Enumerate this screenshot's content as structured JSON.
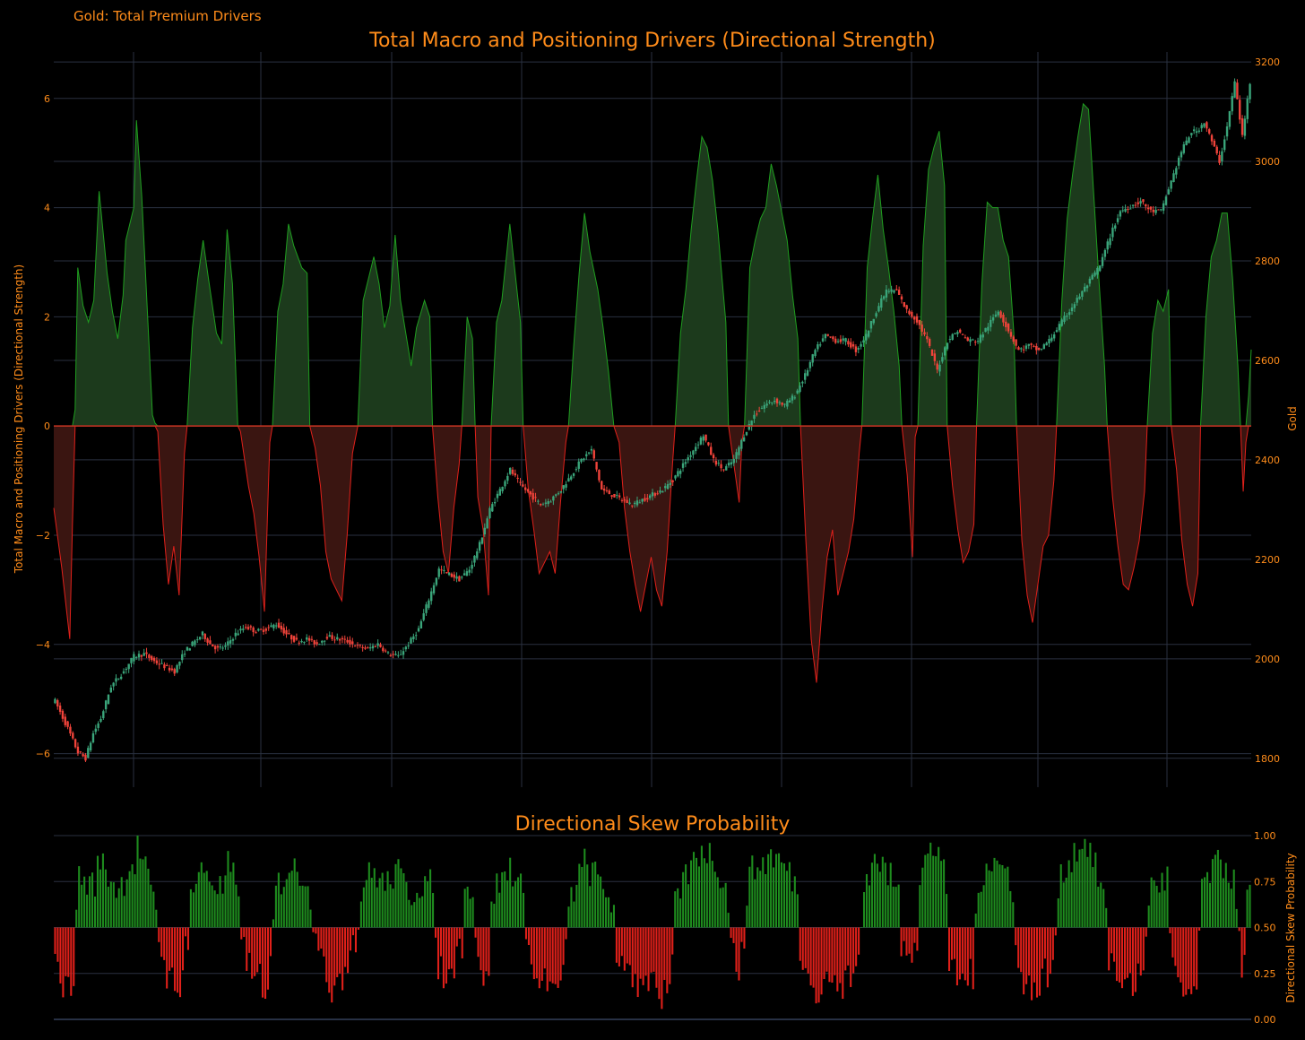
{
  "colors": {
    "accent": "#ff8c1a",
    "grid": "#2a3140",
    "bull_fill": "#1c3a1c",
    "bull_line": "#1f9e1f",
    "bear_fill": "#3a1511",
    "bear_line": "#e0201a",
    "candle_up": "#3aa57a",
    "candle_down": "#f0433a",
    "prob_up": "#1e8c1e",
    "prob_down": "#e0201a"
  },
  "header": {
    "label": "Gold: Total Premium Drivers"
  },
  "chart_data": [
    {
      "type": "area",
      "title": "Total Macro and Positioning Drivers (Directional Strength)",
      "ylabel": "Total Macro and Positioning Drivers (Directional Strength)",
      "y2label": "Gold",
      "ylim": [
        -6.45,
        6.85
      ],
      "y_ticks": [
        "6",
        "4",
        "2",
        "0",
        "−2",
        "−4",
        "−6"
      ],
      "y_tick_values": [
        6,
        4,
        2,
        0,
        -2,
        -4,
        -6
      ],
      "y2lim": [
        1760,
        3220
      ],
      "y2_ticks": [
        "3200",
        "3000",
        "2800",
        "2600",
        "2400",
        "2200",
        "2000",
        "1800"
      ],
      "y2_tick_values": [
        3200,
        3000,
        2800,
        2600,
        2400,
        2200,
        2000,
        1800
      ],
      "grid": true,
      "n_points": 450,
      "driver_anchors": [
        [
          0,
          -1.5
        ],
        [
          3,
          -2.6
        ],
        [
          6,
          -3.9
        ],
        [
          8,
          0.3
        ],
        [
          9,
          2.9
        ],
        [
          11,
          2.2
        ],
        [
          13,
          1.9
        ],
        [
          15,
          2.3
        ],
        [
          17,
          4.3
        ],
        [
          20,
          2.8
        ],
        [
          22,
          2.1
        ],
        [
          24,
          1.6
        ],
        [
          26,
          2.4
        ],
        [
          27,
          3.4
        ],
        [
          30,
          4.0
        ],
        [
          31,
          5.6
        ],
        [
          33,
          4.2
        ],
        [
          35,
          2.2
        ],
        [
          37,
          0.2
        ],
        [
          39,
          -0.1
        ],
        [
          41,
          -1.8
        ],
        [
          43,
          -2.9
        ],
        [
          45,
          -2.2
        ],
        [
          47,
          -3.1
        ],
        [
          49,
          -0.5
        ],
        [
          50,
          0.0
        ],
        [
          52,
          1.8
        ],
        [
          54,
          2.7
        ],
        [
          56,
          3.4
        ],
        [
          58,
          2.7
        ],
        [
          61,
          1.7
        ],
        [
          63,
          1.5
        ],
        [
          65,
          3.6
        ],
        [
          67,
          2.6
        ],
        [
          69,
          0.0
        ],
        [
          70,
          -0.1
        ],
        [
          73,
          -1.1
        ],
        [
          75,
          -1.6
        ],
        [
          77,
          -2.4
        ],
        [
          79,
          -3.4
        ],
        [
          81,
          -0.3
        ],
        [
          82,
          0.0
        ],
        [
          84,
          2.1
        ],
        [
          86,
          2.6
        ],
        [
          88,
          3.7
        ],
        [
          90,
          3.3
        ],
        [
          93,
          2.9
        ],
        [
          95,
          2.8
        ],
        [
          96,
          0.0
        ],
        [
          98,
          -0.4
        ],
        [
          100,
          -1.1
        ],
        [
          102,
          -2.3
        ],
        [
          104,
          -2.8
        ],
        [
          106,
          -3.0
        ],
        [
          108,
          -3.2
        ],
        [
          110,
          -2.0
        ],
        [
          112,
          -0.5
        ],
        [
          114,
          0.0
        ],
        [
          116,
          2.3
        ],
        [
          118,
          2.7
        ],
        [
          120,
          3.1
        ],
        [
          122,
          2.6
        ],
        [
          124,
          1.8
        ],
        [
          126,
          2.2
        ],
        [
          128,
          3.5
        ],
        [
          130,
          2.3
        ],
        [
          132,
          1.7
        ],
        [
          134,
          1.1
        ],
        [
          136,
          1.8
        ],
        [
          139,
          2.3
        ],
        [
          141,
          2.0
        ],
        [
          142,
          0.0
        ],
        [
          144,
          -1.3
        ],
        [
          146,
          -2.3
        ],
        [
          148,
          -2.7
        ],
        [
          150,
          -1.5
        ],
        [
          152,
          -0.7
        ],
        [
          153,
          0.0
        ],
        [
          155,
          2.0
        ],
        [
          157,
          1.6
        ],
        [
          158,
          0.0
        ],
        [
          159,
          -1.3
        ],
        [
          161,
          -1.9
        ],
        [
          163,
          -3.1
        ],
        [
          164,
          0.0
        ],
        [
          166,
          1.9
        ],
        [
          168,
          2.3
        ],
        [
          171,
          3.7
        ],
        [
          173,
          2.8
        ],
        [
          175,
          1.9
        ],
        [
          176,
          0.0
        ],
        [
          178,
          -1.2
        ],
        [
          180,
          -1.9
        ],
        [
          182,
          -2.7
        ],
        [
          184,
          -2.5
        ],
        [
          186,
          -2.3
        ],
        [
          188,
          -2.7
        ],
        [
          190,
          -1.4
        ],
        [
          192,
          -0.3
        ],
        [
          193,
          0.0
        ],
        [
          195,
          1.5
        ],
        [
          197,
          2.8
        ],
        [
          199,
          3.9
        ],
        [
          201,
          3.2
        ],
        [
          204,
          2.5
        ],
        [
          206,
          1.8
        ],
        [
          208,
          1.0
        ],
        [
          210,
          0.0
        ],
        [
          212,
          -0.3
        ],
        [
          214,
          -1.5
        ],
        [
          216,
          -2.3
        ],
        [
          218,
          -2.9
        ],
        [
          220,
          -3.4
        ],
        [
          222,
          -2.9
        ],
        [
          224,
          -2.4
        ],
        [
          226,
          -3.0
        ],
        [
          228,
          -3.3
        ],
        [
          230,
          -2.3
        ],
        [
          232,
          -0.7
        ],
        [
          233,
          0.0
        ],
        [
          235,
          1.7
        ],
        [
          237,
          2.5
        ],
        [
          239,
          3.6
        ],
        [
          241,
          4.5
        ],
        [
          243,
          5.3
        ],
        [
          245,
          5.1
        ],
        [
          247,
          4.5
        ],
        [
          249,
          3.6
        ],
        [
          252,
          1.9
        ],
        [
          253,
          0.0
        ],
        [
          255,
          -0.7
        ],
        [
          257,
          -1.4
        ],
        [
          258,
          -0.3
        ],
        [
          259,
          0.0
        ],
        [
          261,
          2.9
        ],
        [
          263,
          3.4
        ],
        [
          265,
          3.8
        ],
        [
          267,
          4.0
        ],
        [
          269,
          4.8
        ],
        [
          271,
          4.4
        ],
        [
          273,
          3.9
        ],
        [
          275,
          3.4
        ],
        [
          277,
          2.4
        ],
        [
          279,
          1.6
        ],
        [
          280,
          0.0
        ],
        [
          282,
          -2.1
        ],
        [
          284,
          -3.9
        ],
        [
          286,
          -4.7
        ],
        [
          288,
          -3.4
        ],
        [
          290,
          -2.4
        ],
        [
          292,
          -1.9
        ],
        [
          294,
          -3.1
        ],
        [
          296,
          -2.7
        ],
        [
          298,
          -2.3
        ],
        [
          300,
          -1.7
        ],
        [
          302,
          -0.5
        ],
        [
          303,
          0.0
        ],
        [
          305,
          2.9
        ],
        [
          307,
          3.8
        ],
        [
          309,
          4.6
        ],
        [
          311,
          3.6
        ],
        [
          313,
          2.9
        ],
        [
          315,
          2.1
        ],
        [
          317,
          1.1
        ],
        [
          318,
          0.0
        ],
        [
          320,
          -0.9
        ],
        [
          322,
          -2.4
        ],
        [
          323,
          -0.2
        ],
        [
          324,
          0.0
        ],
        [
          326,
          3.3
        ],
        [
          328,
          4.7
        ],
        [
          330,
          5.1
        ],
        [
          332,
          5.4
        ],
        [
          334,
          4.4
        ],
        [
          335,
          0.0
        ],
        [
          337,
          -1.1
        ],
        [
          339,
          -1.9
        ],
        [
          341,
          -2.5
        ],
        [
          343,
          -2.3
        ],
        [
          345,
          -1.8
        ],
        [
          346,
          0.0
        ],
        [
          348,
          2.6
        ],
        [
          350,
          4.1
        ],
        [
          352,
          4.0
        ],
        [
          354,
          4.0
        ],
        [
          356,
          3.4
        ],
        [
          358,
          3.1
        ],
        [
          360,
          1.7
        ],
        [
          361,
          0.0
        ],
        [
          363,
          -2.1
        ],
        [
          365,
          -3.1
        ],
        [
          367,
          -3.6
        ],
        [
          369,
          -2.9
        ],
        [
          371,
          -2.2
        ],
        [
          373,
          -2.0
        ],
        [
          375,
          -1.0
        ],
        [
          376,
          0.0
        ],
        [
          378,
          2.3
        ],
        [
          380,
          3.8
        ],
        [
          382,
          4.6
        ],
        [
          384,
          5.3
        ],
        [
          386,
          5.9
        ],
        [
          388,
          5.8
        ],
        [
          390,
          4.2
        ],
        [
          392,
          2.6
        ],
        [
          394,
          1.1
        ],
        [
          395,
          0.0
        ],
        [
          397,
          -1.3
        ],
        [
          399,
          -2.2
        ],
        [
          401,
          -2.9
        ],
        [
          403,
          -3.0
        ],
        [
          405,
          -2.6
        ],
        [
          407,
          -2.1
        ],
        [
          409,
          -1.2
        ],
        [
          410,
          0.0
        ],
        [
          412,
          1.7
        ],
        [
          414,
          2.3
        ],
        [
          416,
          2.1
        ],
        [
          418,
          2.5
        ],
        [
          419,
          0.0
        ],
        [
          421,
          -0.8
        ],
        [
          423,
          -2.1
        ],
        [
          425,
          -2.9
        ],
        [
          427,
          -3.3
        ],
        [
          429,
          -2.7
        ],
        [
          430,
          0.0
        ],
        [
          432,
          2.0
        ],
        [
          434,
          3.1
        ],
        [
          436,
          3.4
        ],
        [
          438,
          3.9
        ],
        [
          440,
          3.9
        ],
        [
          442,
          2.7
        ],
        [
          444,
          1.1
        ],
        [
          445,
          0.0
        ],
        [
          446,
          -1.2
        ],
        [
          447,
          -0.3
        ],
        [
          449,
          1.4
        ]
      ],
      "gold_anchors": [
        [
          0,
          1915
        ],
        [
          5,
          1860
        ],
        [
          9,
          1812
        ],
        [
          12,
          1800
        ],
        [
          15,
          1850
        ],
        [
          18,
          1880
        ],
        [
          22,
          1945
        ],
        [
          27,
          1975
        ],
        [
          31,
          2005
        ],
        [
          35,
          2010
        ],
        [
          39,
          1995
        ],
        [
          43,
          1985
        ],
        [
          47,
          1975
        ],
        [
          51,
          2015
        ],
        [
          55,
          2035
        ],
        [
          58,
          2050
        ],
        [
          61,
          2030
        ],
        [
          64,
          2020
        ],
        [
          67,
          2025
        ],
        [
          71,
          2050
        ],
        [
          75,
          2065
        ],
        [
          79,
          2055
        ],
        [
          83,
          2060
        ],
        [
          87,
          2070
        ],
        [
          91,
          2050
        ],
        [
          95,
          2035
        ],
        [
          99,
          2040
        ],
        [
          103,
          2030
        ],
        [
          107,
          2045
        ],
        [
          111,
          2040
        ],
        [
          115,
          2035
        ],
        [
          119,
          2025
        ],
        [
          123,
          2020
        ],
        [
          127,
          2030
        ],
        [
          131,
          2010
        ],
        [
          135,
          2005
        ],
        [
          139,
          2030
        ],
        [
          143,
          2060
        ],
        [
          147,
          2120
        ],
        [
          151,
          2180
        ],
        [
          155,
          2170
        ],
        [
          159,
          2160
        ],
        [
          163,
          2180
        ],
        [
          167,
          2230
        ],
        [
          171,
          2300
        ],
        [
          175,
          2340
        ],
        [
          179,
          2380
        ],
        [
          183,
          2350
        ],
        [
          187,
          2330
        ],
        [
          191,
          2310
        ],
        [
          195,
          2320
        ],
        [
          199,
          2340
        ],
        [
          203,
          2370
        ],
        [
          207,
          2400
        ],
        [
          211,
          2420
        ],
        [
          215,
          2340
        ],
        [
          219,
          2330
        ],
        [
          223,
          2320
        ],
        [
          227,
          2310
        ],
        [
          231,
          2320
        ],
        [
          235,
          2330
        ],
        [
          239,
          2340
        ],
        [
          243,
          2360
        ],
        [
          247,
          2390
        ],
        [
          251,
          2420
        ],
        [
          255,
          2450
        ],
        [
          259,
          2400
        ],
        [
          263,
          2380
        ],
        [
          267,
          2400
        ],
        [
          271,
          2450
        ],
        [
          275,
          2490
        ],
        [
          279,
          2510
        ],
        [
          283,
          2520
        ],
        [
          287,
          2510
        ],
        [
          291,
          2530
        ],
        [
          295,
          2570
        ],
        [
          299,
          2620
        ],
        [
          303,
          2650
        ],
        [
          307,
          2640
        ],
        [
          311,
          2640
        ],
        [
          315,
          2620
        ],
        [
          319,
          2650
        ],
        [
          323,
          2700
        ],
        [
          327,
          2740
        ],
        [
          331,
          2740
        ],
        [
          335,
          2700
        ],
        [
          339,
          2680
        ],
        [
          343,
          2640
        ],
        [
          347,
          2580
        ],
        [
          351,
          2640
        ],
        [
          355,
          2660
        ],
        [
          359,
          2640
        ],
        [
          363,
          2640
        ],
        [
          367,
          2670
        ],
        [
          371,
          2700
        ],
        [
          375,
          2660
        ],
        [
          379,
          2620
        ],
        [
          383,
          2630
        ],
        [
          387,
          2620
        ],
        [
          391,
          2640
        ],
        [
          395,
          2670
        ],
        [
          399,
          2700
        ],
        [
          403,
          2730
        ],
        [
          407,
          2760
        ],
        [
          411,
          2790
        ],
        [
          415,
          2850
        ],
        [
          419,
          2900
        ],
        [
          423,
          2910
        ],
        [
          427,
          2920
        ],
        [
          431,
          2900
        ],
        [
          435,
          2900
        ],
        [
          439,
          2960
        ],
        [
          443,
          3020
        ],
        [
          447,
          3060
        ],
        [
          449,
          3060
        ],
        [
          452,
          3080
        ],
        [
          455,
          3040
        ],
        [
          458,
          3000
        ],
        [
          461,
          3070
        ],
        [
          464,
          3160
        ],
        [
          467,
          3050
        ],
        [
          470,
          3160
        ]
      ]
    },
    {
      "type": "bar",
      "title": "Directional Skew Probability",
      "ylabel": "Directional Skew Probability",
      "ylim": [
        0,
        1
      ],
      "y_ticks": [
        "1.00",
        "0.75",
        "0.50",
        "0.25",
        "0.00"
      ],
      "y_tick_values": [
        1.0,
        0.75,
        0.5,
        0.25,
        0.0
      ],
      "baseline": 0.5
    }
  ]
}
